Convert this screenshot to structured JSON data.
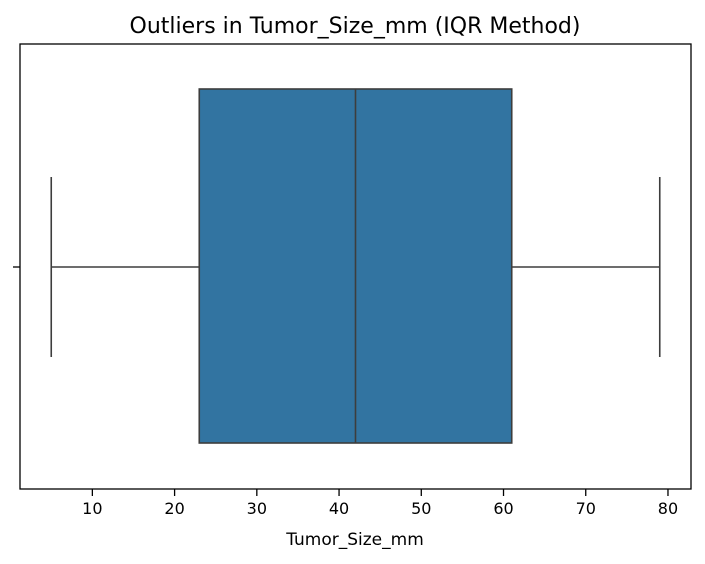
{
  "chart_data": {
    "type": "box",
    "title": "Outliers in Tumor_Size_mm (IQR Method)",
    "xlabel": "Tumor_Size_mm",
    "ylabel": "",
    "orientation": "horizontal",
    "xlim": [
      1.2,
      82.8
    ],
    "xticks": [
      10,
      20,
      30,
      40,
      50,
      60,
      70,
      80
    ],
    "xtick_labels": [
      "10",
      "20",
      "30",
      "40",
      "50",
      "60",
      "70",
      "80"
    ],
    "grid": false,
    "box": {
      "min": 5,
      "q1": 23,
      "median": 42,
      "q3": 61,
      "max": 79,
      "outliers": []
    },
    "colors": {
      "box_fill": "#3274a1",
      "line": "#3d3d3d",
      "frame": "#000000"
    }
  }
}
